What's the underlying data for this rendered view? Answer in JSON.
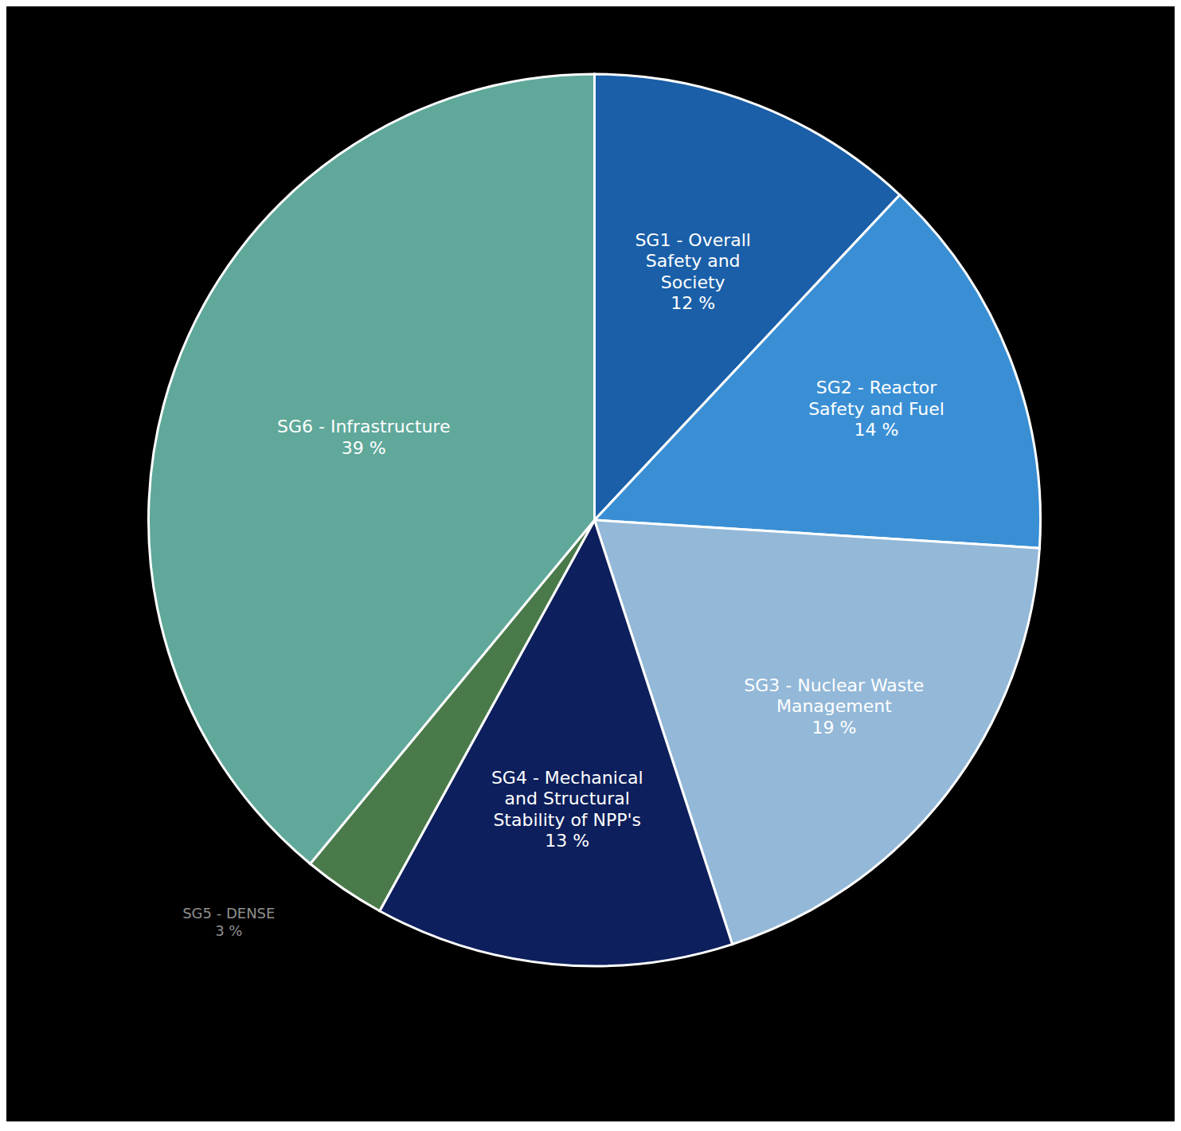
{
  "chart_data": {
    "type": "pie",
    "categories": [
      "SG1 - Overall\nSafety and\nSociety\n12 %",
      "SG2 - Reactor\nSafety and Fuel\n14 %",
      "SG3 - Nuclear Waste\nManagement\n19 %",
      "SG4 - Mechanical\nand Structural\nStability of NPP's\n13 %",
      "SG5 - DENSE\n3 %",
      "SG6 - Infrastructure\n39 %"
    ],
    "values": [
      12,
      14,
      19,
      13,
      3,
      39
    ],
    "colors": [
      "#1a5fa8",
      "#3a8fd4",
      "#93b8d8",
      "#0d1f5c",
      "#4a7a4a",
      "#5fa89a"
    ]
  }
}
